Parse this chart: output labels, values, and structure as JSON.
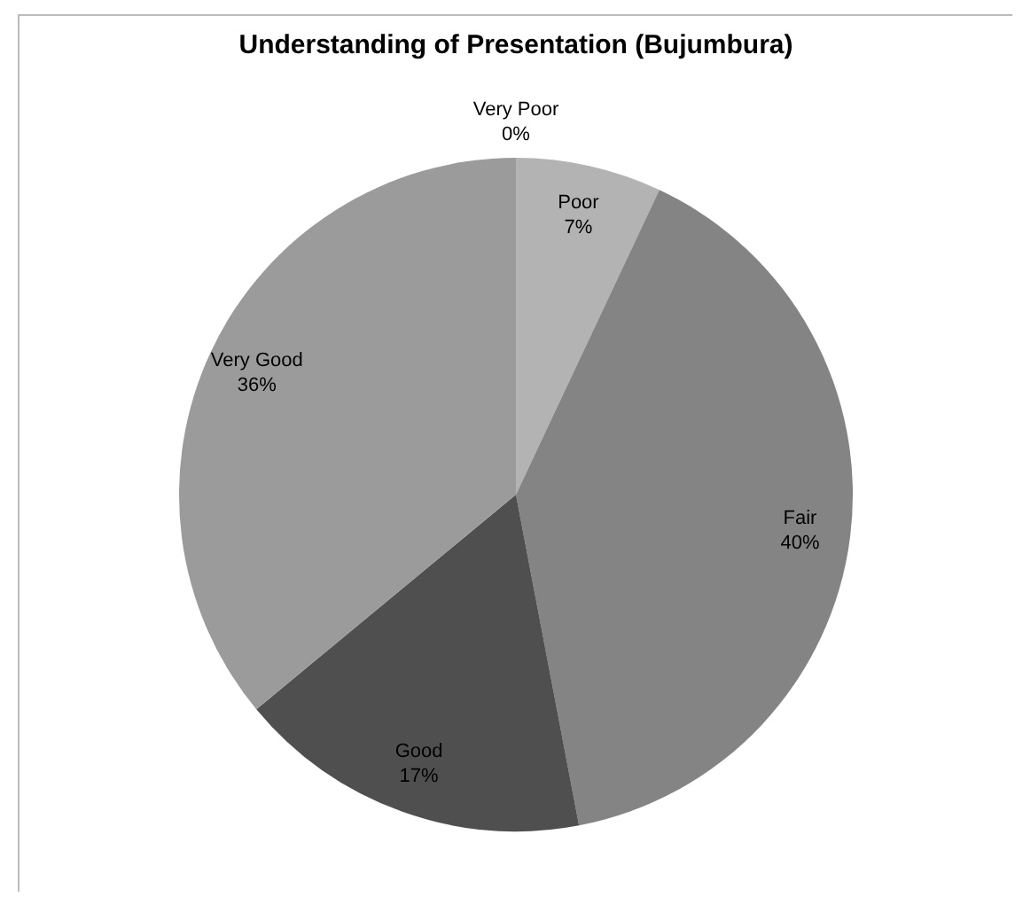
{
  "chart_data": {
    "type": "pie",
    "title": "Understanding of Presentation (Bujumbura)",
    "categories": [
      "Very Poor",
      "Poor",
      "Fair",
      "Good",
      "Very Good"
    ],
    "values": [
      0,
      7,
      40,
      17,
      36
    ],
    "colors": [
      "#6e6e6e",
      "#b3b3b3",
      "#848484",
      "#4f4f4f",
      "#9b9b9b"
    ],
    "value_labels": [
      "0%",
      "7%",
      "40%",
      "17%",
      "36%"
    ],
    "legend": false
  }
}
